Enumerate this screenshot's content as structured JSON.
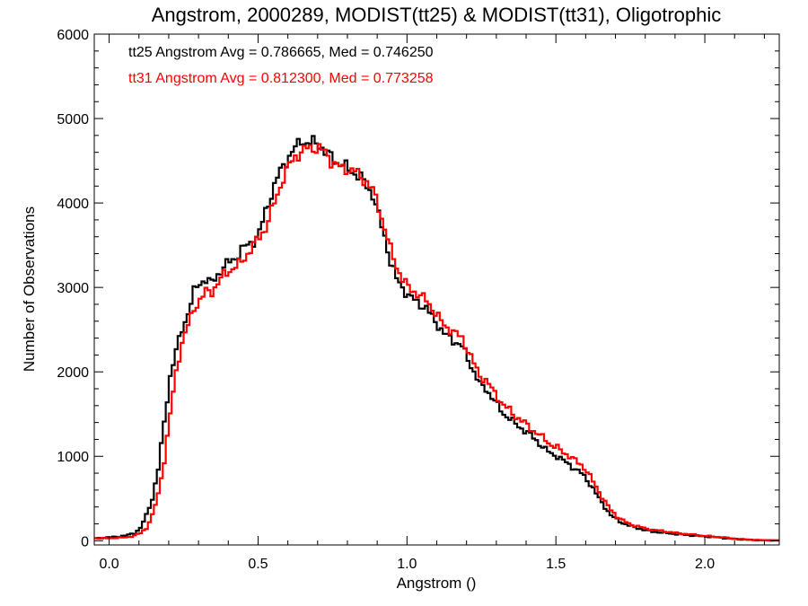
{
  "chart_data": {
    "type": "line",
    "title": "Angstrom, 2000289, MODIST(tt25) & MODIST(tt31), Oligotrophic",
    "xlabel": "Angstrom ()",
    "ylabel": "Number of Observations",
    "xlim": [
      -0.05,
      2.25
    ],
    "ylim": [
      -50,
      6000
    ],
    "xticks": [
      0.0,
      0.5,
      1.0,
      1.5,
      2.0
    ],
    "xtick_labels": [
      "0.0",
      "0.5",
      "1.0",
      "1.5",
      "2.0"
    ],
    "yticks": [
      0,
      1000,
      2000,
      3000,
      4000,
      5000,
      6000
    ],
    "ytick_labels": [
      "0",
      "1000",
      "2000",
      "3000",
      "4000",
      "5000",
      "6000"
    ],
    "grid": false,
    "legend_placement": "top-left",
    "annotations": [
      {
        "text": "tt25 Angstrom Avg = 0.786665, Med = 0.746250",
        "color": "#000000"
      },
      {
        "text": "tt31 Angstrom Avg = 0.812300, Med = 0.773258",
        "color": "#ff0000"
      }
    ],
    "series": [
      {
        "color": "#000000",
        "points": [
          [
            -0.05,
            30
          ],
          [
            0.0,
            40
          ],
          [
            0.05,
            60
          ],
          [
            0.08,
            90
          ],
          [
            0.1,
            150
          ],
          [
            0.12,
            300
          ],
          [
            0.14,
            500
          ],
          [
            0.16,
            850
          ],
          [
            0.18,
            1400
          ],
          [
            0.2,
            1950
          ],
          [
            0.22,
            2250
          ],
          [
            0.24,
            2500
          ],
          [
            0.26,
            2700
          ],
          [
            0.28,
            2950
          ],
          [
            0.3,
            3050
          ],
          [
            0.32,
            3100
          ],
          [
            0.34,
            3050
          ],
          [
            0.36,
            3150
          ],
          [
            0.38,
            3250
          ],
          [
            0.4,
            3300
          ],
          [
            0.42,
            3350
          ],
          [
            0.44,
            3450
          ],
          [
            0.46,
            3500
          ],
          [
            0.48,
            3550
          ],
          [
            0.5,
            3650
          ],
          [
            0.52,
            3900
          ],
          [
            0.54,
            4100
          ],
          [
            0.56,
            4300
          ],
          [
            0.58,
            4450
          ],
          [
            0.6,
            4550
          ],
          [
            0.62,
            4650
          ],
          [
            0.64,
            4750
          ],
          [
            0.66,
            4700
          ],
          [
            0.68,
            4720
          ],
          [
            0.7,
            4700
          ],
          [
            0.72,
            4600
          ],
          [
            0.74,
            4550
          ],
          [
            0.76,
            4480
          ],
          [
            0.78,
            4450
          ],
          [
            0.8,
            4400
          ],
          [
            0.82,
            4350
          ],
          [
            0.84,
            4300
          ],
          [
            0.86,
            4200
          ],
          [
            0.88,
            4100
          ],
          [
            0.9,
            3850
          ],
          [
            0.92,
            3600
          ],
          [
            0.94,
            3300
          ],
          [
            0.96,
            3100
          ],
          [
            0.98,
            3000
          ],
          [
            1.0,
            2900
          ],
          [
            1.02,
            2850
          ],
          [
            1.04,
            2800
          ],
          [
            1.06,
            2750
          ],
          [
            1.08,
            2650
          ],
          [
            1.1,
            2550
          ],
          [
            1.12,
            2450
          ],
          [
            1.14,
            2400
          ],
          [
            1.16,
            2350
          ],
          [
            1.18,
            2300
          ],
          [
            1.2,
            2150
          ],
          [
            1.22,
            2000
          ],
          [
            1.24,
            1850
          ],
          [
            1.26,
            1800
          ],
          [
            1.28,
            1700
          ],
          [
            1.3,
            1600
          ],
          [
            1.32,
            1500
          ],
          [
            1.34,
            1450
          ],
          [
            1.36,
            1380
          ],
          [
            1.38,
            1330
          ],
          [
            1.4,
            1280
          ],
          [
            1.42,
            1220
          ],
          [
            1.44,
            1150
          ],
          [
            1.46,
            1080
          ],
          [
            1.48,
            1030
          ],
          [
            1.5,
            1000
          ],
          [
            1.52,
            950
          ],
          [
            1.54,
            900
          ],
          [
            1.56,
            850
          ],
          [
            1.58,
            800
          ],
          [
            1.6,
            720
          ],
          [
            1.62,
            620
          ],
          [
            1.64,
            500
          ],
          [
            1.66,
            400
          ],
          [
            1.68,
            300
          ],
          [
            1.7,
            250
          ],
          [
            1.72,
            210
          ],
          [
            1.74,
            180
          ],
          [
            1.76,
            160
          ],
          [
            1.78,
            140
          ],
          [
            1.8,
            120
          ],
          [
            1.84,
            100
          ],
          [
            1.9,
            80
          ],
          [
            1.96,
            60
          ],
          [
            2.0,
            50
          ],
          [
            2.04,
            40
          ],
          [
            2.08,
            25
          ],
          [
            2.12,
            15
          ],
          [
            2.16,
            8
          ],
          [
            2.2,
            5
          ],
          [
            2.25,
            3
          ]
        ]
      },
      {
        "color": "#ff0000",
        "points": [
          [
            -0.05,
            30
          ],
          [
            0.0,
            30
          ],
          [
            0.05,
            40
          ],
          [
            0.08,
            60
          ],
          [
            0.1,
            90
          ],
          [
            0.12,
            150
          ],
          [
            0.14,
            300
          ],
          [
            0.16,
            550
          ],
          [
            0.18,
            950
          ],
          [
            0.2,
            1500
          ],
          [
            0.22,
            2000
          ],
          [
            0.24,
            2350
          ],
          [
            0.26,
            2550
          ],
          [
            0.28,
            2750
          ],
          [
            0.3,
            2850
          ],
          [
            0.32,
            2950
          ],
          [
            0.34,
            2950
          ],
          [
            0.36,
            3050
          ],
          [
            0.38,
            3150
          ],
          [
            0.4,
            3200
          ],
          [
            0.42,
            3250
          ],
          [
            0.44,
            3300
          ],
          [
            0.46,
            3400
          ],
          [
            0.48,
            3500
          ],
          [
            0.5,
            3600
          ],
          [
            0.52,
            3700
          ],
          [
            0.54,
            3900
          ],
          [
            0.56,
            4100
          ],
          [
            0.58,
            4300
          ],
          [
            0.6,
            4450
          ],
          [
            0.62,
            4550
          ],
          [
            0.64,
            4600
          ],
          [
            0.66,
            4650
          ],
          [
            0.68,
            4650
          ],
          [
            0.7,
            4650
          ],
          [
            0.72,
            4600
          ],
          [
            0.74,
            4500
          ],
          [
            0.76,
            4450
          ],
          [
            0.78,
            4400
          ],
          [
            0.8,
            4400
          ],
          [
            0.82,
            4380
          ],
          [
            0.84,
            4300
          ],
          [
            0.86,
            4250
          ],
          [
            0.88,
            4150
          ],
          [
            0.9,
            3950
          ],
          [
            0.92,
            3700
          ],
          [
            0.94,
            3450
          ],
          [
            0.96,
            3250
          ],
          [
            0.98,
            3100
          ],
          [
            1.0,
            3000
          ],
          [
            1.02,
            2950
          ],
          [
            1.04,
            2900
          ],
          [
            1.06,
            2850
          ],
          [
            1.08,
            2750
          ],
          [
            1.1,
            2650
          ],
          [
            1.12,
            2550
          ],
          [
            1.14,
            2500
          ],
          [
            1.16,
            2450
          ],
          [
            1.18,
            2400
          ],
          [
            1.2,
            2250
          ],
          [
            1.22,
            2100
          ],
          [
            1.24,
            1950
          ],
          [
            1.26,
            1900
          ],
          [
            1.28,
            1800
          ],
          [
            1.3,
            1700
          ],
          [
            1.32,
            1600
          ],
          [
            1.34,
            1550
          ],
          [
            1.36,
            1470
          ],
          [
            1.38,
            1420
          ],
          [
            1.4,
            1370
          ],
          [
            1.42,
            1300
          ],
          [
            1.44,
            1250
          ],
          [
            1.46,
            1200
          ],
          [
            1.48,
            1130
          ],
          [
            1.5,
            1100
          ],
          [
            1.52,
            1050
          ],
          [
            1.54,
            1000
          ],
          [
            1.56,
            950
          ],
          [
            1.58,
            900
          ],
          [
            1.6,
            820
          ],
          [
            1.62,
            700
          ],
          [
            1.64,
            580
          ],
          [
            1.66,
            460
          ],
          [
            1.68,
            360
          ],
          [
            1.7,
            290
          ],
          [
            1.72,
            240
          ],
          [
            1.74,
            200
          ],
          [
            1.76,
            180
          ],
          [
            1.78,
            160
          ],
          [
            1.8,
            140
          ],
          [
            1.84,
            120
          ],
          [
            1.9,
            90
          ],
          [
            1.96,
            70
          ],
          [
            2.0,
            55
          ],
          [
            2.04,
            45
          ],
          [
            2.08,
            30
          ],
          [
            2.12,
            18
          ],
          [
            2.16,
            10
          ],
          [
            2.2,
            6
          ],
          [
            2.25,
            4
          ]
        ]
      }
    ]
  }
}
